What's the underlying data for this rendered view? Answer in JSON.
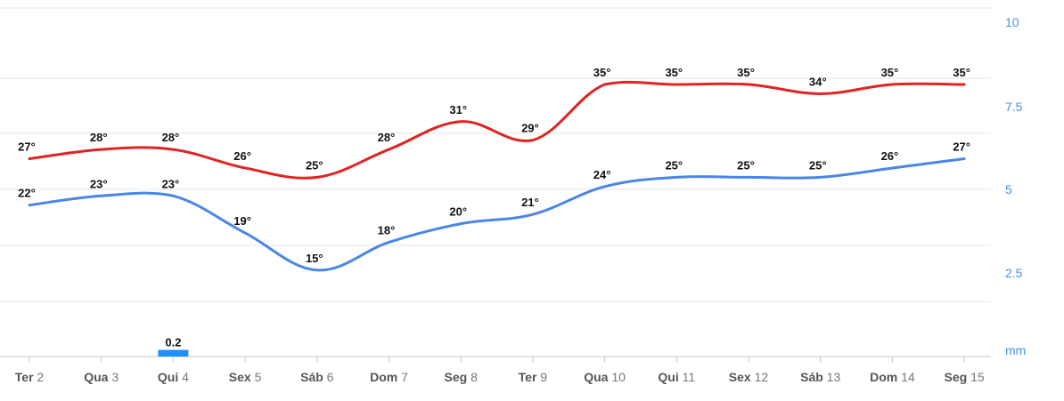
{
  "chart_data": {
    "type": "line",
    "categories": [
      {
        "day": "Ter",
        "num": "2"
      },
      {
        "day": "Qua",
        "num": "3"
      },
      {
        "day": "Qui",
        "num": "4"
      },
      {
        "day": "Sex",
        "num": "5"
      },
      {
        "day": "Sáb",
        "num": "6"
      },
      {
        "day": "Dom",
        "num": "7"
      },
      {
        "day": "Seg",
        "num": "8"
      },
      {
        "day": "Ter",
        "num": "9"
      },
      {
        "day": "Qua",
        "num": "10"
      },
      {
        "day": "Qui",
        "num": "11"
      },
      {
        "day": "Sex",
        "num": "12"
      },
      {
        "day": "Sáb",
        "num": "13"
      },
      {
        "day": "Dom",
        "num": "14"
      },
      {
        "day": "Seg",
        "num": "15"
      }
    ],
    "series": [
      {
        "values": [
          27,
          28,
          28,
          26,
          25,
          28,
          31,
          29,
          35,
          35,
          35,
          34,
          35,
          35
        ],
        "color": "#e02424"
      },
      {
        "values": [
          22,
          23,
          23,
          19,
          15,
          18,
          20,
          21,
          24,
          25,
          25,
          25,
          26,
          27
        ],
        "color": "#4a86e8"
      }
    ],
    "precipitation": {
      "values": [
        null,
        null,
        0.2,
        null,
        null,
        null,
        null,
        null,
        null,
        null,
        null,
        null,
        null,
        null
      ],
      "labels": [
        "",
        "",
        "0.2",
        "",
        "",
        "",
        "",
        "",
        "",
        "",
        "",
        "",
        "",
        ""
      ],
      "color": "#1e90ff"
    },
    "y_axis": {
      "unit": "mm",
      "ticks": [
        "10",
        "7.5",
        "5",
        "2.5"
      ],
      "tick_values": [
        10,
        7.5,
        5,
        2.5
      ],
      "range": [
        0,
        10
      ],
      "position": "right"
    },
    "temp_label_suffix": "°",
    "grid": true,
    "legend": "none"
  }
}
